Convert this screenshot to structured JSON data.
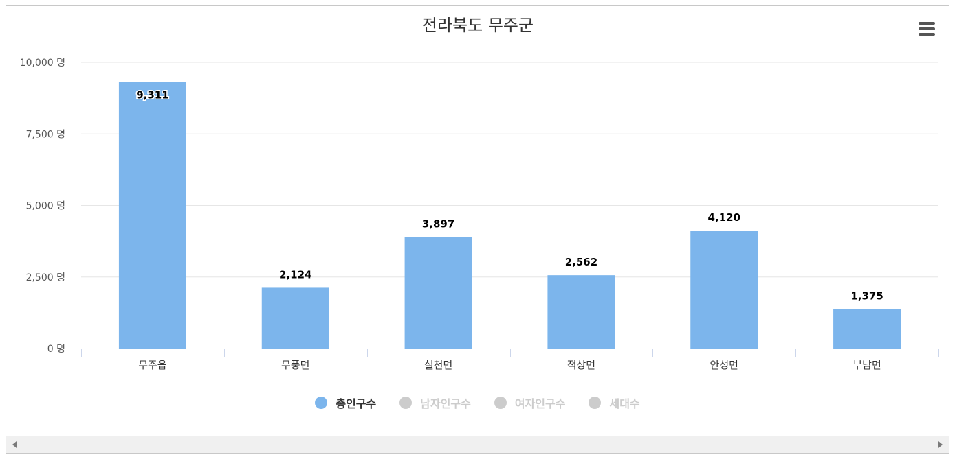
{
  "chart_data": {
    "type": "bar",
    "title": "전라북도 무주군",
    "categories": [
      "무주읍",
      "무풍면",
      "설천면",
      "적상면",
      "안성면",
      "부남면"
    ],
    "series": [
      {
        "name": "총인구수",
        "values": [
          9311,
          2124,
          3897,
          2562,
          4120,
          1375
        ],
        "value_labels": [
          "9,311",
          "2,124",
          "3,897",
          "2,562",
          "4,120",
          "1,375"
        ],
        "color": "#7cb5ec"
      }
    ],
    "ylim": [
      0,
      10000
    ],
    "yticks": [
      0,
      2500,
      5000,
      7500,
      10000
    ],
    "ytick_labels": [
      "0 명",
      "2,500 명",
      "5,000 명",
      "7,500 명",
      "10,000 명"
    ],
    "xlabel": "",
    "ylabel": "",
    "grid": true,
    "legend_position": "bottom-center"
  },
  "legend": [
    {
      "label": "총인구수",
      "active": true,
      "color": "#7cb5ec"
    },
    {
      "label": "남자인구수",
      "active": false,
      "color": "#cccccc"
    },
    {
      "label": "여자인구수",
      "active": false,
      "color": "#cccccc"
    },
    {
      "label": "세대수",
      "active": false,
      "color": "#cccccc"
    }
  ],
  "menu_icon": "hamburger-menu-icon",
  "colors": {
    "bar": "#7cb5ec",
    "grid": "#e6e6e6",
    "axis": "#ccd6eb",
    "title": "#333333",
    "legend_active": "#333333",
    "legend_inactive": "#cccccc"
  }
}
